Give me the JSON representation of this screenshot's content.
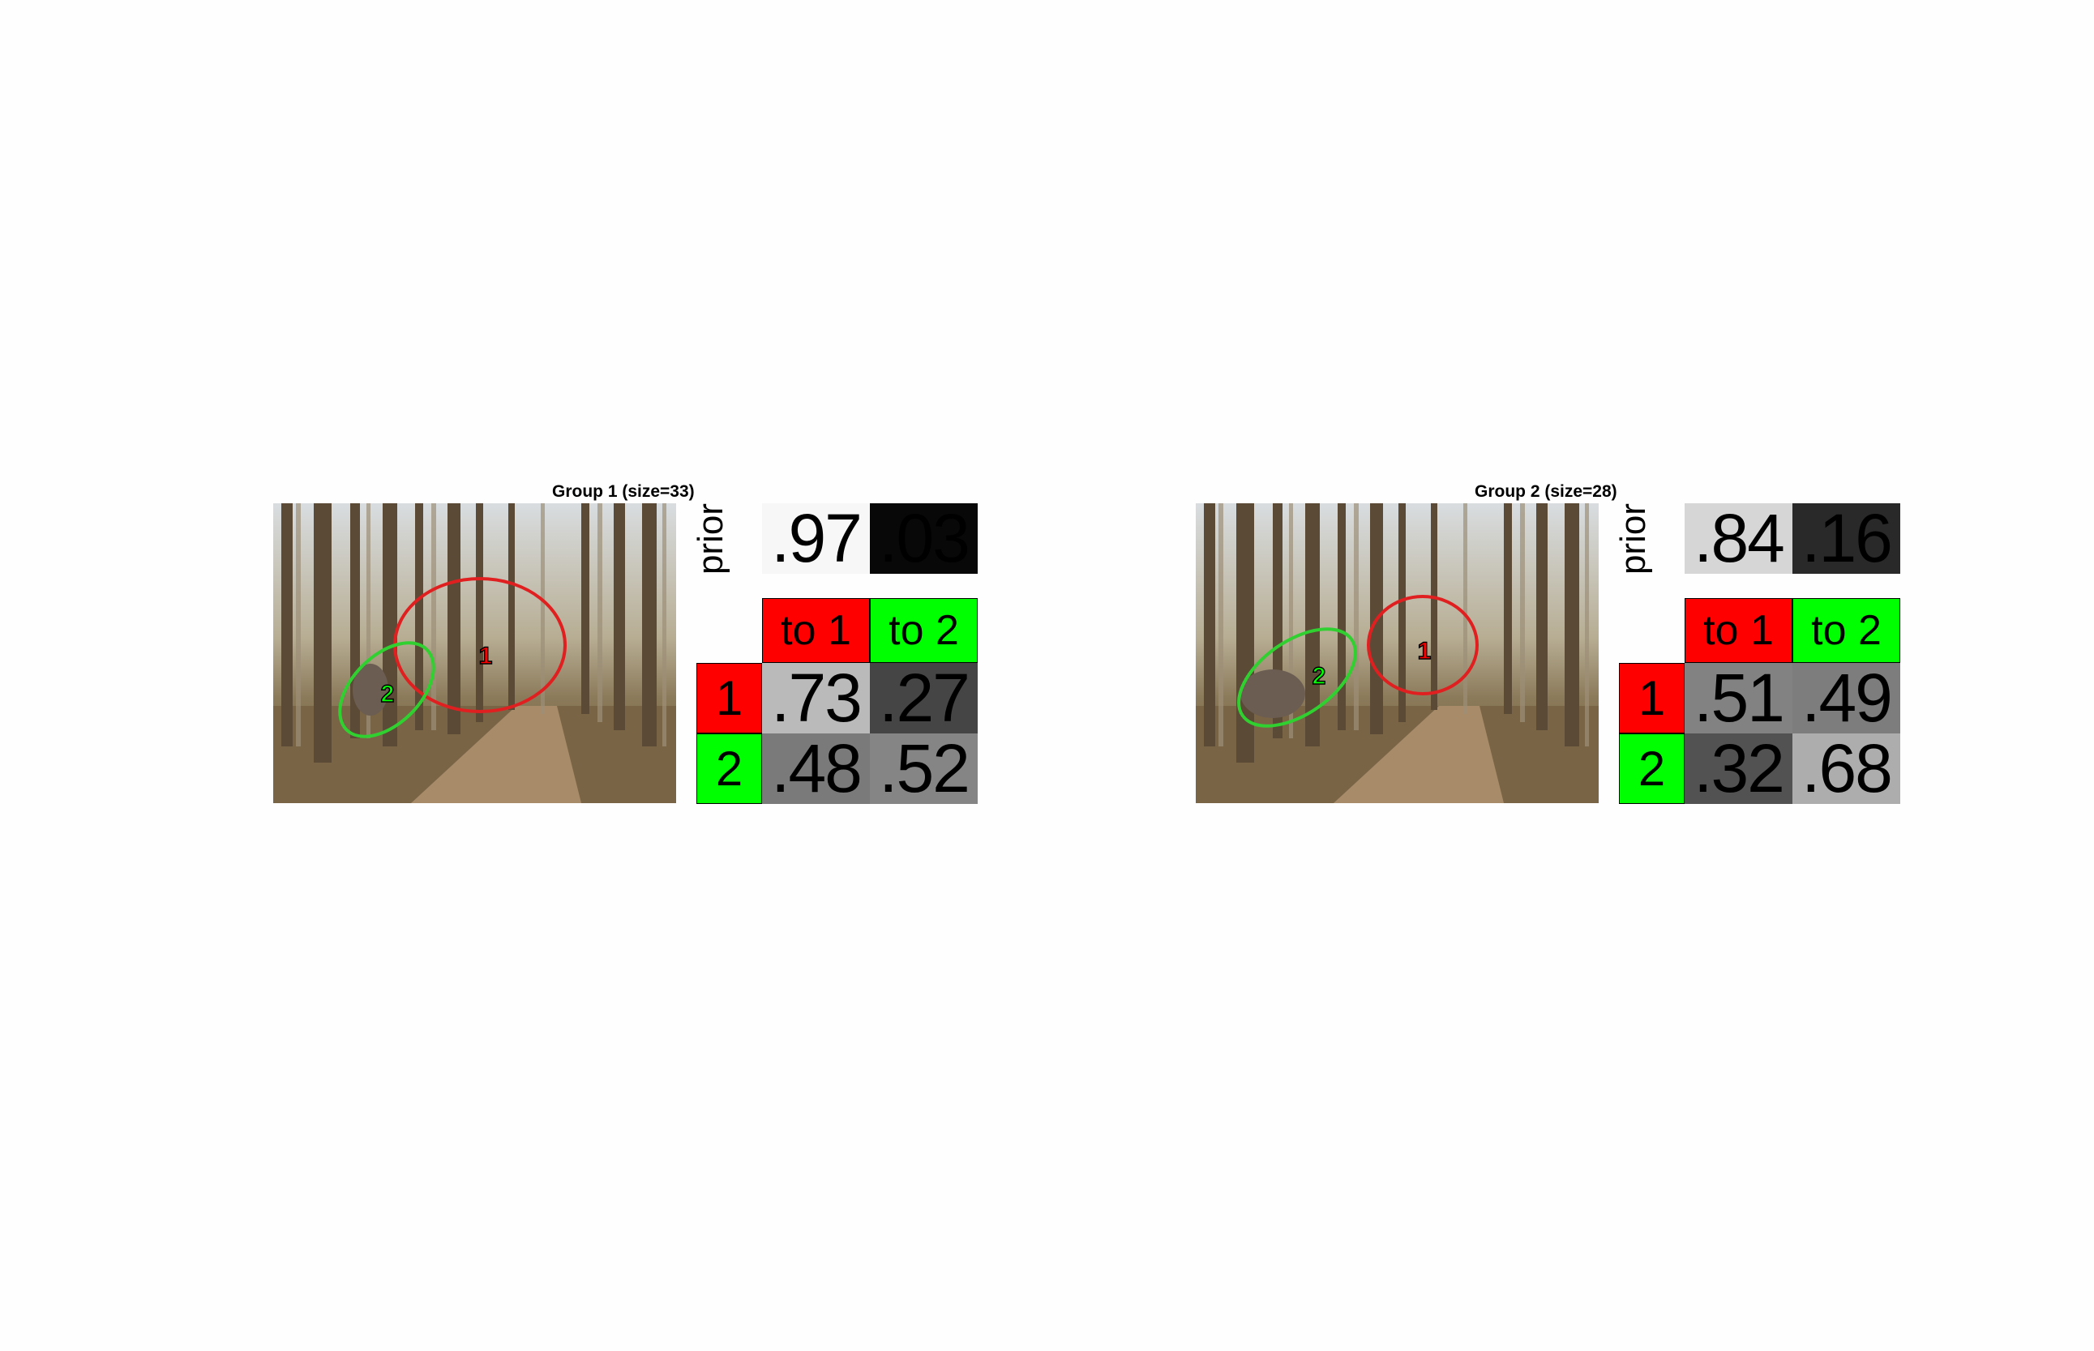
{
  "panels": [
    {
      "title": "Group 1 (size=33)",
      "prior_label": "prior",
      "prior": [
        ".97",
        ".03"
      ],
      "prior_shades": [
        "#f7f7f7",
        "#080808"
      ],
      "col_headers": [
        "to 1",
        "to 2"
      ],
      "row_headers": [
        "1",
        "2"
      ],
      "matrix": [
        [
          ".73",
          ".27"
        ],
        [
          ".48",
          ".52"
        ]
      ],
      "matrix_shades": [
        [
          "#bababa",
          "#454545"
        ],
        [
          "#7a7a7a",
          "#858585"
        ]
      ],
      "segments": [
        {
          "label": "1",
          "color": "#ff0000"
        },
        {
          "label": "2",
          "color": "#00ff00"
        }
      ]
    },
    {
      "title": "Group 2 (size=28)",
      "prior_label": "prior",
      "prior": [
        ".84",
        ".16"
      ],
      "prior_shades": [
        "#d6d6d6",
        "#292929"
      ],
      "col_headers": [
        "to 1",
        "to 2"
      ],
      "row_headers": [
        "1",
        "2"
      ],
      "matrix": [
        [
          ".51",
          ".49"
        ],
        [
          ".32",
          ".68"
        ]
      ],
      "matrix_shades": [
        [
          "#828282",
          "#7d7d7d"
        ],
        [
          "#525252",
          "#adadad"
        ]
      ],
      "segments": [
        {
          "label": "1",
          "color": "#ff0000"
        },
        {
          "label": "2",
          "color": "#00ff00"
        }
      ]
    }
  ],
  "colors": {
    "class1": "#ff0000",
    "class2": "#00ff00",
    "ellipse1": "#e02020",
    "ellipse2": "#30d030"
  }
}
